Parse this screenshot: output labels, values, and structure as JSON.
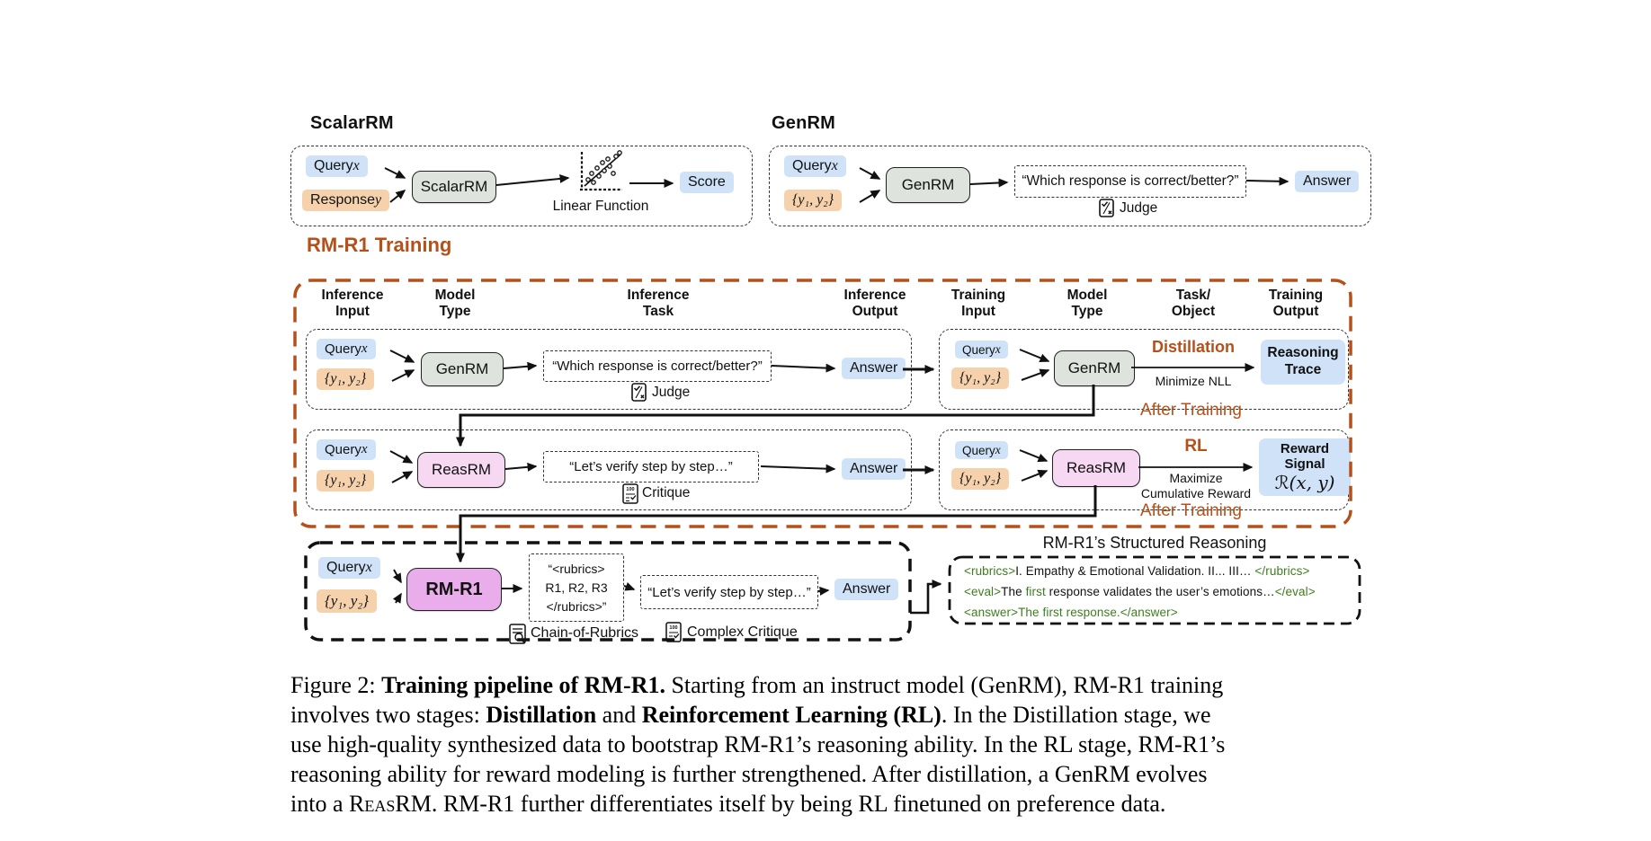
{
  "colors": {
    "accent_orange": "#b5501a",
    "chip_blue": "#cfe2f8",
    "chip_orange": "#f6d2ac",
    "node_gray": "#dee3dd",
    "node_pink": "#f7d8f3",
    "node_magenta": "#e9adec",
    "tag_green": "#3e7d1f"
  },
  "scalarrm": {
    "title": "ScalarRM",
    "query": {
      "label": "Query ",
      "var": "x"
    },
    "response": {
      "label": "Response ",
      "var": "y"
    },
    "node": "ScalarRM",
    "plot_label": "Linear Function",
    "output": "Score"
  },
  "genrm": {
    "title": "GenRM",
    "query": {
      "label": "Query ",
      "var": "x"
    },
    "pair": "{y₁, y₂}",
    "node": "GenRM",
    "task": "“Which response is correct/better?”",
    "judge": "Judge",
    "output": "Answer"
  },
  "training": {
    "title": "RM-R1 Training",
    "headers": [
      {
        "l1": "Inference",
        "l2": "Input"
      },
      {
        "l1": "Model",
        "l2": "Type"
      },
      {
        "l1": "Inference",
        "l2": "Task"
      },
      {
        "l1": "Inference",
        "l2": "Output"
      },
      {
        "l1": "Training",
        "l2": "Input"
      },
      {
        "l1": "Model",
        "l2": "Type"
      },
      {
        "l1": "Task/",
        "l2": "Object"
      },
      {
        "l1": "Training",
        "l2": "Output"
      }
    ],
    "row1": {
      "query": {
        "label": "Query ",
        "var": "x"
      },
      "pair": "{y₁, y₂}",
      "node": "GenRM",
      "task": "“Which response is correct/better?”",
      "judge": "Judge",
      "answer": "Answer",
      "t_query": {
        "label": "Query ",
        "var": "x"
      },
      "t_pair": "{y₁, y₂}",
      "t_node": "GenRM",
      "stage": "Distillation",
      "objective": "Minimize NLL",
      "output_l1": "Reasoning",
      "output_l2": "Trace",
      "after": "After Training"
    },
    "row2": {
      "query": {
        "label": "Query ",
        "var": "x"
      },
      "pair": "{y₁, y₂}",
      "node": "ReasRM",
      "task": "“Let’s verify step by step…”",
      "critique": "Critique",
      "answer": "Answer",
      "t_query": {
        "label": "Query ",
        "var": "x"
      },
      "t_pair": "{y₁, y₂}",
      "t_node": "ReasRM",
      "stage": "RL",
      "objective_l1": "Maximize",
      "objective_l2": "Cumulative Reward",
      "output_l1": "Reward Signal",
      "output_l2": "ℛ(x, y)",
      "after": "After Training"
    }
  },
  "bottom": {
    "query": {
      "label": "Query ",
      "var": "x"
    },
    "pair": "{y₁, y₂}",
    "node": "RM-R1",
    "rubrics_l1": "“<rubrics>",
    "rubrics_l2": "R1, R2, R3",
    "rubrics_l3": "</rubrics>”",
    "rubrics_label": "Chain-of-Rubrics",
    "task": "“Let’s verify step by step…”",
    "critique_label": "Complex Critique",
    "answer": "Answer"
  },
  "reasoning": {
    "title": "RM-R1’s Structured Reasoning",
    "lines": [
      [
        {
          "t": "<rubrics>",
          "g": true
        },
        {
          "t": "I. Empathy & Emotional Validation.  II...  III… ",
          "g": false
        },
        {
          "t": "</rubrics>",
          "g": true
        }
      ],
      [
        {
          "t": "<eval>",
          "g": true
        },
        {
          "t": "The ",
          "g": false
        },
        {
          "t": "first",
          "g": true
        },
        {
          "t": " response validates the user’s emotions…",
          "g": false
        },
        {
          "t": "</eval>",
          "g": true
        }
      ],
      [
        {
          "t": "<answer>The first response.</answer>",
          "g": true
        }
      ]
    ]
  },
  "caption": {
    "lines": [
      [
        {
          "t": "Figure 2: "
        },
        {
          "t": "Training pipeline of RM-R1.",
          "b": true
        },
        {
          "t": " Starting from an instruct model (GenRM), RM-R1 training"
        }
      ],
      [
        {
          "t": "involves two stages: "
        },
        {
          "t": "Distillation",
          "b": true
        },
        {
          "t": " and "
        },
        {
          "t": "Reinforcement Learning (RL)",
          "b": true
        },
        {
          "t": ". In the Distillation stage, we"
        }
      ],
      [
        {
          "t": "use high-quality synthesized data to bootstrap RM-R1’s reasoning ability. In the RL stage, RM-R1’s"
        }
      ],
      [
        {
          "t": "reasoning ability for reward modeling is further strengthened. After distillation, a GenRM evolves"
        }
      ],
      [
        {
          "t": "into a "
        },
        {
          "t": "Reas",
          "sc": true
        },
        {
          "t": "RM. RM-R1 further differentiates itself by being RL finetuned on preference data."
        }
      ]
    ]
  }
}
